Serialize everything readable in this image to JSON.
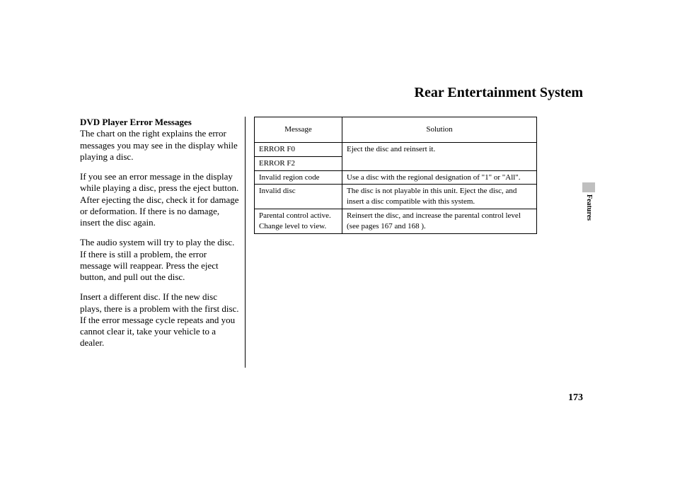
{
  "title": "Rear Entertainment System",
  "left": {
    "subhead": "DVD Player Error Messages",
    "p1": "The chart on the right explains the error messages you may see in the display while playing a disc.",
    "p2": "If you see an error message in the display while playing a disc, press the eject button. After ejecting the disc, check it for damage or deformation. If there is no damage, insert the disc again.",
    "p3": "The audio system will try to play the disc. If there is still a problem, the error message will reappear. Press the eject button, and pull out the disc.",
    "p4": "Insert a different disc. If the new disc plays, there is a problem with the first disc. If the error message cycle repeats and you cannot clear it, take your vehicle to a dealer."
  },
  "table": {
    "headers": {
      "message": "Message",
      "solution": "Solution"
    },
    "r0": {
      "msg": "ERROR F0",
      "sol": "Eject the disc and reinsert it."
    },
    "r1": {
      "msg": "ERROR F2"
    },
    "r2": {
      "msg": "Invalid region code",
      "sol": "Use a disc with the regional designation of \"1\" or \"All\"."
    },
    "r3": {
      "msg": "Invalid disc",
      "sol": "The disc is not playable in this unit. Eject the disc, and insert a disc compatible with this system."
    },
    "r4": {
      "msg": "Parental control active. Change level to view.",
      "sol": "Reinsert the disc, and increase the parental control level (see pages 167 and 168 )."
    }
  },
  "side": {
    "label": "Features",
    "tab_color": "#bfbfbf"
  },
  "page_number": "173",
  "fonts": {
    "body_family": "Georgia, serif",
    "title_size_pt": 20,
    "body_size_pt": 13,
    "table_size_pt": 11
  },
  "colors": {
    "text": "#000000",
    "background": "#ffffff",
    "border": "#000000"
  }
}
